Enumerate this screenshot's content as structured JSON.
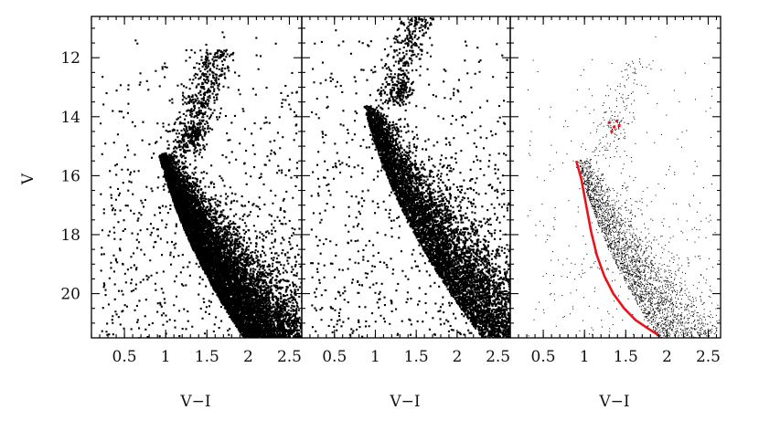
{
  "chart_data": [
    {
      "type": "scatter",
      "panel": "left",
      "xlabel": "V−I",
      "ylabel": "V",
      "xlim": [
        0.1,
        2.65
      ],
      "ylim": [
        21.5,
        10.6
      ],
      "y_inverted": true,
      "x_ticks": [
        "0.5",
        "1",
        "1.5",
        "2",
        "2.5"
      ],
      "y_ticks": [
        "12",
        "14",
        "16",
        "18",
        "20"
      ],
      "marker_color": "#000000",
      "series": [
        {
          "values_description_free": true,
          "features": [
            {
              "kind": "main_sequence_band",
              "turnoff_x": 0.95,
              "turnoff_y": 15.2,
              "density": "very_high"
            },
            {
              "kind": "red_clump",
              "x": 1.35,
              "y": 14.6
            },
            {
              "kind": "field_scatter",
              "x_range": [
                0.2,
                2.6
              ],
              "y_range": [
                11.0,
                21.5
              ]
            }
          ]
        }
      ]
    },
    {
      "type": "scatter",
      "panel": "middle",
      "xlabel": "V−I",
      "ylabel": "",
      "xlim": [
        0.1,
        2.65
      ],
      "ylim": [
        21.5,
        10.6
      ],
      "y_inverted": true,
      "x_ticks": [
        "0.5",
        "1",
        "1.5",
        "2",
        "2.5"
      ],
      "marker_color": "#000000",
      "series": [
        {
          "features": [
            {
              "kind": "main_sequence_band",
              "turnoff_x": 0.9,
              "turnoff_y": 13.6,
              "density": "high"
            },
            {
              "kind": "red_clump",
              "x": 1.32,
              "y": 13.1
            },
            {
              "kind": "field_scatter",
              "x_range": [
                0.2,
                2.6
              ],
              "y_range": [
                10.7,
                21.5
              ]
            }
          ]
        }
      ]
    },
    {
      "type": "scatter",
      "panel": "right",
      "xlabel": "V−I",
      "ylabel": "",
      "xlim": [
        0.1,
        2.65
      ],
      "ylim": [
        21.5,
        10.6
      ],
      "y_inverted": true,
      "x_ticks": [
        "0.5",
        "1",
        "1.5",
        "2",
        "2.5"
      ],
      "marker_color": "#000000",
      "overlay_color": "#e8141c",
      "series": [
        {
          "features": [
            {
              "kind": "main_sequence_band",
              "turnoff_x": 0.95,
              "turnoff_y": 15.4,
              "density": "low"
            },
            {
              "kind": "red_clump",
              "x": 1.38,
              "y": 14.4
            },
            {
              "kind": "field_scatter",
              "x_range": [
                0.3,
                2.55
              ],
              "y_range": [
                11.0,
                21.5
              ]
            }
          ]
        }
      ],
      "overlay_line": {
        "x": [
          0.9,
          0.96,
          1.02,
          1.08,
          1.15,
          1.24,
          1.35,
          1.48,
          1.62,
          1.78,
          1.92
        ],
        "y": [
          15.5,
          16.1,
          17.0,
          17.9,
          18.7,
          19.4,
          20.0,
          20.5,
          20.9,
          21.2,
          21.45
        ]
      },
      "overlay_clump": {
        "x": [
          1.3,
          1.36,
          1.42,
          1.33,
          1.39
        ],
        "y": [
          14.2,
          14.35,
          14.3,
          14.5,
          14.15
        ]
      }
    }
  ]
}
